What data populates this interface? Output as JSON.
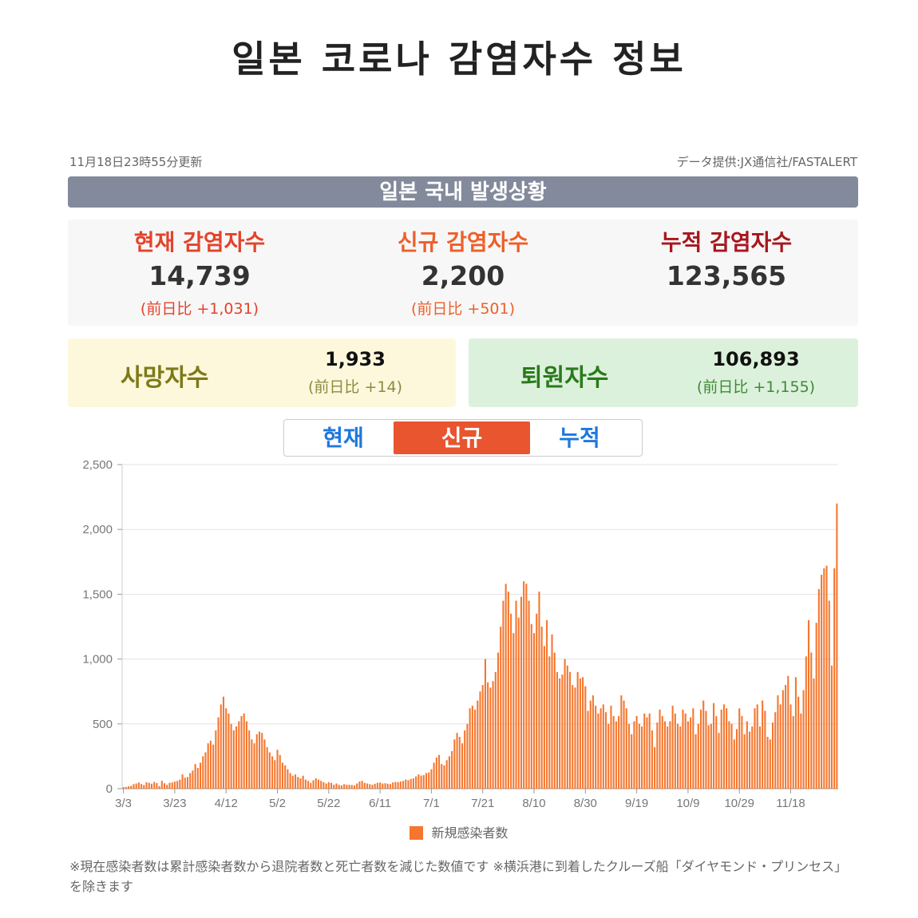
{
  "page": {
    "title": "일본 코로나 감염자수 정보",
    "updated": "11月18日23時55分更新",
    "source": "データ提供:JX通信社/FASTALERT",
    "banner": "일본 국내 발생상황"
  },
  "stats": {
    "current": {
      "label": "현재 감염자수",
      "value": "14,739",
      "diff": "(前日比 +1,031)",
      "color": "#e3432b"
    },
    "new": {
      "label": "신규 감염자수",
      "value": "2,200",
      "diff": "(前日比 +501)",
      "color": "#ee5f2a"
    },
    "total": {
      "label": "누적 감염자수",
      "value": "123,565",
      "diff": "",
      "color": "#a8161f"
    }
  },
  "deaths": {
    "label": "사망자수",
    "value": "1,933",
    "diff": "(前日比 +14)",
    "label_color": "#7d7a18",
    "diff_color": "#8c8a40"
  },
  "recovered": {
    "label": "퇴원자수",
    "value": "106,893",
    "diff": "(前日比 +1,155)",
    "label_color": "#2a7a1c",
    "diff_color": "#3f8a34"
  },
  "tabs": {
    "items": [
      {
        "label": "현재",
        "active": false
      },
      {
        "label": "신규",
        "active": true
      },
      {
        "label": "누적",
        "active": false
      }
    ]
  },
  "colors": {
    "bar": "#f5772f",
    "grid": "#e3e3e3",
    "axis_text": "#777777"
  },
  "chart_data": {
    "type": "bar",
    "title": "",
    "xlabel": "",
    "ylabel": "",
    "ylim": [
      0,
      2500
    ],
    "yticks": [
      0,
      500,
      1000,
      1500,
      2000,
      2500
    ],
    "ytick_labels": [
      "0",
      "500",
      "1,000",
      "1,500",
      "2,000",
      "2,500"
    ],
    "x_tick_labels": [
      "3/3",
      "3/23",
      "4/12",
      "5/2",
      "5/22",
      "6/11",
      "7/1",
      "7/21",
      "8/10",
      "8/30",
      "9/19",
      "10/9",
      "10/29",
      "11/18"
    ],
    "start_date": "3/3",
    "end_date": "11/18",
    "series": [
      {
        "name": "新規感染者数",
        "values": [
          12,
          13,
          18,
          22,
          35,
          40,
          48,
          36,
          28,
          50,
          45,
          38,
          52,
          44,
          20,
          60,
          42,
          30,
          45,
          48,
          55,
          60,
          70,
          110,
          85,
          90,
          120,
          140,
          190,
          160,
          200,
          250,
          280,
          350,
          370,
          340,
          450,
          550,
          650,
          710,
          620,
          580,
          500,
          450,
          480,
          520,
          560,
          580,
          520,
          450,
          380,
          350,
          420,
          440,
          430,
          380,
          320,
          280,
          250,
          220,
          300,
          260,
          200,
          180,
          150,
          120,
          100,
          110,
          90,
          80,
          100,
          70,
          60,
          45,
          65,
          80,
          70,
          60,
          50,
          40,
          50,
          45,
          30,
          40,
          30,
          25,
          35,
          30,
          30,
          28,
          25,
          40,
          55,
          60,
          45,
          40,
          35,
          30,
          38,
          45,
          48,
          40,
          42,
          38,
          35,
          48,
          52,
          50,
          55,
          60,
          70,
          65,
          75,
          80,
          95,
          110,
          100,
          105,
          120,
          125,
          150,
          200,
          240,
          260,
          190,
          180,
          220,
          250,
          290,
          380,
          430,
          400,
          350,
          450,
          500,
          620,
          640,
          610,
          680,
          750,
          800,
          1000,
          820,
          780,
          830,
          900,
          1050,
          1250,
          1450,
          1580,
          1520,
          1350,
          1200,
          1450,
          1320,
          1480,
          1600,
          1580,
          1450,
          1270,
          1200,
          1350,
          1520,
          1250,
          1100,
          1300,
          1020,
          1190,
          1050,
          900,
          850,
          880,
          1000,
          950,
          900,
          800,
          780,
          900,
          850,
          860,
          790,
          600,
          680,
          720,
          640,
          580,
          620,
          650,
          590,
          500,
          640,
          560,
          520,
          560,
          720,
          680,
          620,
          500,
          420,
          520,
          560,
          500,
          480,
          580,
          550,
          580,
          450,
          320,
          510,
          610,
          560,
          520,
          480,
          520,
          640,
          580,
          500,
          480,
          610,
          580,
          520,
          550,
          620,
          420,
          500,
          610,
          680,
          600,
          490,
          500,
          660,
          560,
          430,
          610,
          650,
          620,
          520,
          500,
          380,
          460,
          620,
          560,
          420,
          520,
          440,
          480,
          620,
          650,
          480,
          680,
          600,
          400,
          380,
          510,
          590,
          720,
          650,
          760,
          800,
          870,
          650,
          560,
          860,
          710,
          580,
          760,
          1020,
          1300,
          1050,
          850,
          1280,
          1540,
          1650,
          1700,
          1720,
          1450,
          950,
          1700,
          2200
        ]
      }
    ]
  },
  "footnote": "※現在感染者数は累計感染者数から退院者数と死亡者数を減じた数値です ※横浜港に到着したクルーズ船「ダイヤモンド・プリンセス」を除きます"
}
